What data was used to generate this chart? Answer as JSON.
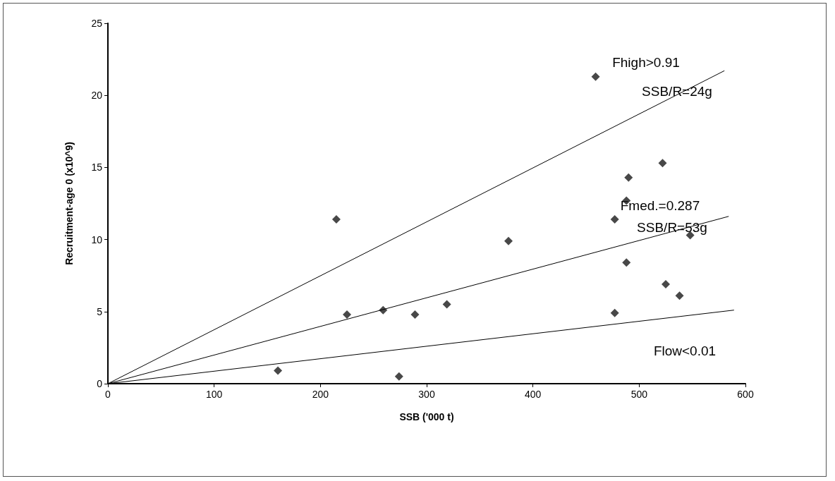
{
  "chart_data": {
    "type": "scatter",
    "xlabel": "SSB ('000 t)",
    "ylabel": "Recruitment-age 0 (x10^9)",
    "xlim": [
      0,
      600
    ],
    "xticks": [
      0,
      100,
      200,
      300,
      400,
      500,
      600
    ],
    "ylim": [
      0,
      25
    ],
    "yticks": [
      0,
      5,
      10,
      15,
      20,
      25
    ],
    "grid": false,
    "marker": "diamond",
    "series": [
      {
        "color": "#1a1a1a",
        "x": [
          160,
          215,
          225,
          259,
          274,
          289,
          319,
          377,
          459,
          477,
          488,
          490,
          522,
          548,
          488,
          525,
          538,
          477
        ],
        "values": [
          0.9,
          11.4,
          4.8,
          5.1,
          0.5,
          4.8,
          5.5,
          9.9,
          21.3,
          11.4,
          12.7,
          14.3,
          15.3,
          10.3,
          8.4,
          6.9,
          6.1,
          4.9
        ]
      },
      {
        "type": "line",
        "color": "#000000",
        "marker": "none",
        "x": [
          0,
          580
        ],
        "values": [
          0,
          21.7
        ]
      },
      {
        "type": "line",
        "color": "#000000",
        "marker": "none",
        "x": [
          0,
          584
        ],
        "values": [
          0,
          11.6
        ]
      },
      {
        "type": "line",
        "color": "#000000",
        "marker": "none",
        "x": [
          0,
          589
        ],
        "values": [
          0,
          5.1
        ]
      }
    ],
    "annotations": [
      "Fhigh>0.91",
      "SSB/R=24g",
      "Fmed.=0.287",
      "SSB/R=53g",
      "Flow<0.01"
    ]
  }
}
